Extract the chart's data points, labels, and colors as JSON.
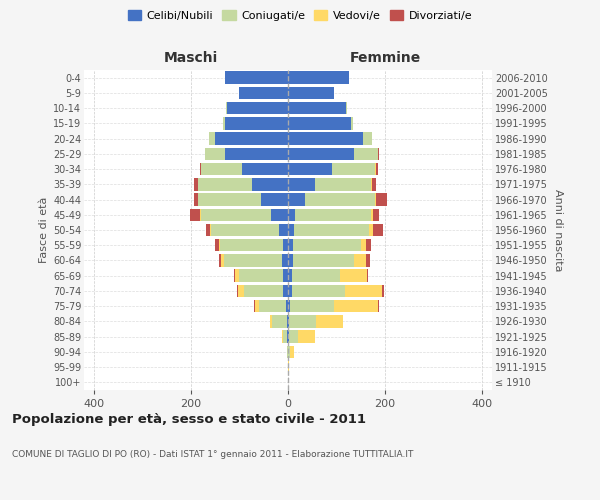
{
  "age_groups": [
    "100+",
    "95-99",
    "90-94",
    "85-89",
    "80-84",
    "75-79",
    "70-74",
    "65-69",
    "60-64",
    "55-59",
    "50-54",
    "45-49",
    "40-44",
    "35-39",
    "30-34",
    "25-29",
    "20-24",
    "15-19",
    "10-14",
    "5-9",
    "0-4"
  ],
  "birth_years": [
    "≤ 1910",
    "1911-1915",
    "1916-1920",
    "1921-1925",
    "1926-1930",
    "1931-1935",
    "1936-1940",
    "1941-1945",
    "1946-1950",
    "1951-1955",
    "1956-1960",
    "1961-1965",
    "1966-1970",
    "1971-1975",
    "1976-1980",
    "1981-1985",
    "1986-1990",
    "1991-1995",
    "1996-2000",
    "2001-2005",
    "2006-2010"
  ],
  "males": {
    "celibe": [
      0,
      0,
      0,
      2,
      3,
      5,
      10,
      10,
      12,
      10,
      18,
      35,
      55,
      75,
      95,
      130,
      150,
      130,
      125,
      100,
      130
    ],
    "coniugato": [
      0,
      0,
      2,
      8,
      30,
      55,
      80,
      90,
      120,
      130,
      140,
      145,
      130,
      110,
      85,
      40,
      12,
      3,
      2,
      0,
      0
    ],
    "vedovo": [
      0,
      0,
      0,
      2,
      4,
      8,
      12,
      10,
      5,
      2,
      2,
      2,
      1,
      0,
      0,
      0,
      0,
      0,
      0,
      0,
      0
    ],
    "divorziato": [
      0,
      0,
      0,
      0,
      0,
      2,
      2,
      2,
      5,
      8,
      8,
      20,
      8,
      8,
      2,
      1,
      0,
      0,
      0,
      0,
      0
    ]
  },
  "females": {
    "nubile": [
      0,
      0,
      0,
      2,
      3,
      5,
      8,
      8,
      10,
      10,
      12,
      15,
      35,
      55,
      90,
      135,
      155,
      130,
      120,
      95,
      125
    ],
    "coniugata": [
      0,
      0,
      5,
      18,
      55,
      90,
      110,
      100,
      125,
      140,
      155,
      155,
      145,
      115,
      90,
      50,
      18,
      4,
      2,
      0,
      0
    ],
    "vedova": [
      0,
      2,
      8,
      35,
      55,
      90,
      75,
      55,
      25,
      10,
      8,
      5,
      2,
      2,
      1,
      0,
      0,
      0,
      0,
      0,
      0
    ],
    "divorziata": [
      0,
      0,
      0,
      0,
      0,
      2,
      5,
      2,
      8,
      10,
      20,
      12,
      22,
      10,
      5,
      2,
      0,
      0,
      0,
      0,
      0
    ]
  },
  "colors": {
    "celibe_nubile": "#4472C4",
    "coniugato": "#C5D9A0",
    "vedovo": "#FFD966",
    "divorziato": "#C0504D"
  },
  "xlim": 420,
  "title": "Popolazione per età, sesso e stato civile - 2011",
  "subtitle": "COMUNE DI TAGLIO DI PO (RO) - Dati ISTAT 1° gennaio 2011 - Elaborazione TUTTITALIA.IT",
  "ylabel_left": "Fasce di età",
  "ylabel_right": "Anni di nascita",
  "xlabel_males": "Maschi",
  "xlabel_females": "Femmine",
  "legend_labels": [
    "Celibi/Nubili",
    "Coniugati/e",
    "Vedovi/e",
    "Divorziati/e"
  ],
  "bg_color": "#f5f5f5",
  "plot_bg": "#ffffff"
}
